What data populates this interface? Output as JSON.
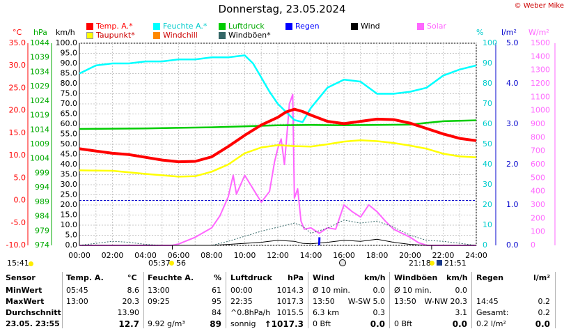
{
  "title": "Donnerstag, 23.05.2024",
  "copyright": "© Weber Mike",
  "legend": [
    {
      "label": "Temp. A.*",
      "color": "#ff0000"
    },
    {
      "label": "Feuchte A.*",
      "color": "#00ffff"
    },
    {
      "label": "Luftdruck",
      "color": "#00cc00"
    },
    {
      "label": "Regen",
      "color": "#0000ff"
    },
    {
      "label": "Wind",
      "color": "#000000"
    },
    {
      "label": "Solar",
      "color": "#ff66ff"
    },
    {
      "label": "Taupunkt*",
      "color": "#ffff00"
    },
    {
      "label": "Windchill",
      "color": "#ff8800"
    },
    {
      "label": "Windböen*",
      "color": "#336666"
    }
  ],
  "axis_units": {
    "temp": "°C",
    "pressure": "hPa",
    "wind": "km/h",
    "humidity": "%",
    "rain": "l/m²",
    "solar": "W/m²"
  },
  "ticks": {
    "temp": [
      "35.0",
      "30.0",
      "25.0",
      "20.0",
      "15.0",
      "10.0",
      "5.0",
      "0.0",
      "-5.0",
      "-10.0"
    ],
    "pressure": [
      "1044",
      "1039",
      "1034",
      "1029",
      "1024",
      "1019",
      "1014",
      "1009",
      "1004",
      "999",
      "994",
      "989",
      "984",
      "979",
      "974"
    ],
    "wind": [
      "100.0",
      "95.0",
      "90.0",
      "85.0",
      "80.0",
      "75.0",
      "70.0",
      "65.0",
      "60.0",
      "55.0",
      "50.0",
      "45.0",
      "40.0",
      "35.0",
      "30.0",
      "25.0",
      "20.0",
      "15.0",
      "10.0",
      "5.0",
      "0.0"
    ],
    "humidity": [
      "100",
      "90",
      "80",
      "70",
      "60",
      "50",
      "40",
      "30",
      "20",
      "10",
      "0"
    ],
    "rain": [
      "5.0",
      "4.0",
      "3.0",
      "2.0",
      "1.0",
      "0.0"
    ],
    "solar": [
      "1500",
      "1400",
      "1300",
      "1200",
      "1100",
      "1000",
      "900",
      "800",
      "700",
      "600",
      "500",
      "400",
      "300",
      "200",
      "100",
      "0"
    ],
    "time": [
      "00:00",
      "02:00",
      "04:00",
      "06:00",
      "08:00",
      "10:00",
      "12:00",
      "14:00",
      "16:00",
      "18:00",
      "20:00",
      "22:00",
      "24:00"
    ]
  },
  "astro": {
    "left_time": "15:41",
    "sunrise": "05:37",
    "moon_rise_phase": "56",
    "sunset": "21:18",
    "moonset": "21:51"
  },
  "chart_data": {
    "type": "line",
    "x_unit": "hour",
    "xlim": [
      0,
      24
    ],
    "series": [
      {
        "name": "Temp. A.*",
        "axis": "temp",
        "color": "#ff0000",
        "x": [
          0,
          1,
          2,
          3,
          4,
          5,
          6,
          7,
          8,
          9,
          10,
          11,
          12,
          12.5,
          13,
          13.5,
          14,
          15,
          16,
          17,
          18,
          19,
          20,
          21,
          22,
          23,
          24
        ],
        "y": [
          11.5,
          11.0,
          10.5,
          10.2,
          9.6,
          9.0,
          8.6,
          8.7,
          9.7,
          12.0,
          14.5,
          16.8,
          18.5,
          19.7,
          20.3,
          19.8,
          19.0,
          17.6,
          17.1,
          17.6,
          18.1,
          18.0,
          17.2,
          16.0,
          14.8,
          13.8,
          13.3
        ]
      },
      {
        "name": "Feuchte A.*",
        "axis": "humidity",
        "color": "#00ffff",
        "x": [
          0,
          1,
          2,
          3,
          4,
          5,
          6,
          7,
          8,
          9,
          10,
          10.5,
          11,
          11.5,
          12,
          12.5,
          13,
          13.5,
          14,
          15,
          16,
          17,
          18,
          19,
          20,
          21,
          22,
          23,
          24
        ],
        "y": [
          85,
          89,
          90,
          90,
          91,
          91,
          92,
          92,
          93,
          93,
          94,
          90,
          83,
          76,
          70,
          66,
          62,
          61,
          68,
          78,
          82,
          81,
          75,
          75,
          76,
          78,
          84,
          87,
          89
        ]
      },
      {
        "name": "Luftdruck",
        "axis": "pressure",
        "color": "#00cc00",
        "x": [
          0,
          2,
          4,
          6,
          8,
          10,
          12,
          14,
          16,
          18,
          20,
          21,
          22,
          24
        ],
        "y": [
          1014.3,
          1014.4,
          1014.5,
          1014.7,
          1014.9,
          1015.2,
          1015.6,
          1015.7,
          1015.6,
          1015.7,
          1015.8,
          1016.4,
          1017.0,
          1017.3
        ]
      },
      {
        "name": "Taupunkt*",
        "axis": "temp",
        "color": "#ffff00",
        "x": [
          0,
          2,
          4,
          6,
          7,
          8,
          9,
          10,
          11,
          12,
          13,
          14,
          15,
          16,
          17,
          18,
          19,
          20,
          21,
          22,
          23,
          24
        ],
        "y": [
          6.7,
          6.6,
          5.9,
          5.3,
          5.4,
          6.4,
          8.0,
          10.5,
          11.8,
          12.3,
          12.1,
          12.0,
          12.5,
          13.1,
          13.4,
          13.2,
          12.8,
          12.2,
          11.5,
          10.4,
          9.8,
          9.6
        ]
      },
      {
        "name": "Solar",
        "axis": "solar",
        "color": "#ff66ff",
        "x": [
          0,
          5.6,
          6,
          7,
          8,
          8.5,
          9,
          9.3,
          9.5,
          10,
          10.5,
          11,
          11.5,
          11.8,
          12,
          12.2,
          12.4,
          12.6,
          12.7,
          12.9,
          13.0,
          13.2,
          13.4,
          13.6,
          14,
          14.5,
          15,
          15.5,
          16,
          16.5,
          17,
          17.5,
          18,
          18.5,
          19,
          20,
          20.5,
          21,
          24
        ],
        "y": [
          0,
          0,
          10,
          60,
          130,
          220,
          360,
          520,
          380,
          520,
          420,
          320,
          400,
          620,
          720,
          790,
          600,
          900,
          1050,
          1120,
          350,
          420,
          180,
          120,
          130,
          90,
          130,
          120,
          300,
          250,
          210,
          300,
          250,
          180,
          120,
          60,
          20,
          0,
          0
        ]
      },
      {
        "name": "Windböen*",
        "axis": "wind",
        "color": "#336666",
        "x": [
          0,
          2,
          3,
          4,
          5,
          6,
          7,
          8,
          9,
          10,
          11,
          12,
          13,
          13.5,
          14,
          15,
          16,
          17,
          18,
          19,
          20,
          21,
          22,
          24
        ],
        "y": [
          0,
          2.0,
          1.5,
          0.5,
          0,
          0,
          0,
          0,
          2.0,
          4.5,
          7.0,
          9.0,
          11.0,
          9.5,
          6.0,
          8.5,
          12.5,
          11.0,
          12.0,
          9.0,
          5.0,
          2.5,
          2.0,
          0
        ]
      },
      {
        "name": "Wind",
        "axis": "wind",
        "color": "#000000",
        "x": [
          0,
          8,
          9,
          10,
          11,
          12,
          13,
          13.5,
          14,
          15,
          16,
          17,
          18,
          19,
          20,
          21,
          24
        ],
        "y": [
          0,
          0,
          0.5,
          1.0,
          1.5,
          2.5,
          2.0,
          1.0,
          0.8,
          1.5,
          2.5,
          2.0,
          3.0,
          1.5,
          0.5,
          0,
          0
        ]
      },
      {
        "name": "Regen",
        "axis": "rain",
        "color": "#0000ff",
        "x": [
          14.5,
          14.52
        ],
        "y": [
          0,
          0.2
        ]
      }
    ]
  },
  "table": {
    "col_headers": [
      {
        "label": "Sensor",
        "unit": ""
      },
      {
        "label": "Temp. A.",
        "unit": "°C"
      },
      {
        "label": "Feuchte A.",
        "unit": "%"
      },
      {
        "label": "Luftdruck",
        "unit": "hPa"
      },
      {
        "label": "Wind",
        "unit": "km/h"
      },
      {
        "label": "Windböen",
        "unit": "km/h"
      },
      {
        "label": "Regen",
        "unit": "l/m²"
      }
    ],
    "rows": [
      {
        "label": "MinWert",
        "cells": [
          [
            "05:45",
            "8.6"
          ],
          [
            "13:00",
            "61"
          ],
          [
            "00:00",
            "1014.3"
          ],
          [
            "Ø 10 min.",
            "0.0"
          ],
          [
            "Ø 10 min.",
            "0.0"
          ],
          [
            "",
            ""
          ]
        ]
      },
      {
        "label": "MaxWert",
        "cells": [
          [
            "13:00",
            "20.3"
          ],
          [
            "09:25",
            "95"
          ],
          [
            "22:35",
            "1017.3"
          ],
          [
            "13:50",
            "W-SW 5.0"
          ],
          [
            "13:50",
            "W-NW 20.3"
          ],
          [
            "14:45",
            "0.2"
          ]
        ]
      },
      {
        "label": "Durchschnitt",
        "cells": [
          [
            "",
            "13.90"
          ],
          [
            "",
            "84"
          ],
          [
            "^0.8hPa/h",
            "1015.5"
          ],
          [
            "6.3 km",
            "0.3"
          ],
          [
            "",
            "3.1"
          ],
          [
            "Gesamt:",
            "0.2"
          ]
        ]
      },
      {
        "label": "23.05.  23:55",
        "cells": [
          [
            "",
            "12.7"
          ],
          [
            "9.92 g/m³",
            "89"
          ],
          [
            "sonnig",
            "↑1017.3"
          ],
          [
            "0 Bft",
            "0.0"
          ],
          [
            "0 Bft",
            "0.0"
          ],
          [
            "0.2 l/m²",
            "0.0"
          ]
        ]
      }
    ]
  }
}
